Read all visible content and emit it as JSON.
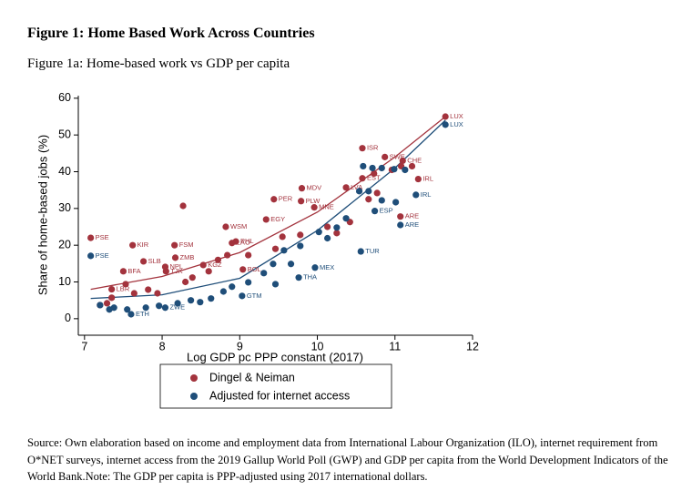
{
  "chart_data": {
    "type": "scatter",
    "title": "Figure 1: Home Based Work Across Countries",
    "subtitle": "Figure 1a: Home-based work vs GDP per capita",
    "x_label": "Log GDP pc PPP constant (2017)",
    "y_label": "Share of home-based jobs (%)",
    "xlim": [
      6.92,
      12.0
    ],
    "ylim": [
      -4.5,
      60.7
    ],
    "xticks": [
      7,
      8,
      9,
      10,
      11,
      12
    ],
    "yticks": [
      0,
      10,
      20,
      30,
      40,
      50,
      60
    ],
    "series": [
      {
        "name": "Dingel & Neiman",
        "color": "#a3333d",
        "x": [
          7.08,
          11.65,
          10.58,
          10.87,
          11.1,
          8.27,
          7.62,
          8.16,
          8.17,
          7.76,
          7.5,
          7.35,
          8.82,
          8.95,
          8.9,
          8.04,
          8.05,
          8.53,
          9.04,
          9.44,
          9.8,
          9.79,
          9.96,
          9.34,
          11.07,
          11.3,
          10.37,
          10.58,
          10.73,
          10.96,
          11.08,
          11.22,
          10.66,
          10.77,
          10.42,
          10.13,
          10.25,
          9.78,
          9.55,
          9.46,
          9.11,
          8.84,
          8.72,
          8.6,
          8.39,
          8.3,
          7.94,
          7.82,
          7.64,
          7.53,
          7.35,
          7.29,
          7.2
        ],
        "values": [
          22,
          55,
          46.4,
          44,
          43,
          30.7,
          20,
          20,
          16.6,
          15.6,
          12.9,
          8,
          25,
          21,
          20.6,
          14.1,
          12.9,
          14.6,
          13.4,
          32.5,
          35.5,
          32,
          30.3,
          27,
          27.8,
          38,
          35.7,
          38.2,
          39.5,
          40.5,
          41.5,
          41.5,
          32.5,
          34.2,
          26.3,
          25,
          23.3,
          22.8,
          22.3,
          19,
          17.3,
          17.3,
          16,
          12.9,
          11.2,
          10,
          6.9,
          7.9,
          6.9,
          9.4,
          5.7,
          4.2,
          3.7
        ],
        "labels": [
          "PSE",
          "LUX",
          "ISR",
          "SWE",
          "CHE",
          null,
          "KIR",
          "FSM",
          "ZMB",
          "SLB",
          "BFA",
          "LBR",
          "WSM",
          "PHL",
          "LAO",
          "NPL",
          "TJK",
          "KGZ",
          "BOL",
          "PER",
          "MDV",
          "PLW",
          "MNE",
          "EGY",
          "ARE",
          "IRL",
          "LVA",
          "EST",
          null,
          null,
          null,
          null,
          null,
          null,
          null,
          null,
          null,
          null,
          null,
          null,
          null,
          null,
          null,
          null,
          null,
          null,
          null,
          null,
          null,
          null,
          null,
          null,
          null
        ]
      },
      {
        "name": "Adjusted for internet access",
        "color": "#1f4e79",
        "x": [
          11.65,
          11.27,
          11.07,
          7.08,
          10.56,
          9.97,
          9.76,
          9.03,
          8.04,
          7.6,
          10.74,
          10.59,
          10.71,
          10.83,
          10.99,
          11.13,
          10.54,
          10.66,
          10.83,
          11.01,
          10.37,
          10.25,
          10.02,
          10.13,
          9.78,
          9.57,
          9.43,
          9.31,
          9.66,
          9.46,
          9.11,
          8.9,
          8.79,
          8.63,
          8.49,
          8.37,
          8.2,
          7.96,
          7.79,
          7.55,
          7.38,
          7.32,
          7.2
        ],
        "values": [
          52.8,
          33.7,
          25.5,
          17.1,
          18.3,
          13.9,
          11.2,
          6.2,
          3,
          1.2,
          29.3,
          41.5,
          41,
          41,
          40.7,
          40.5,
          34.7,
          34.7,
          32.2,
          31.7,
          27.3,
          24.8,
          23.6,
          21.9,
          19.8,
          18.6,
          14.9,
          12.4,
          14.9,
          9.4,
          9.9,
          8.7,
          7.4,
          5.5,
          4.5,
          5,
          4.2,
          3.5,
          3,
          2.5,
          3,
          2.5,
          3.7
        ],
        "labels": [
          "LUX",
          "IRL",
          "ARE",
          "PSE",
          "TUR",
          "MEX",
          "THA",
          "GTM",
          "ZWE",
          "ETH",
          "ESP",
          null,
          null,
          null,
          null,
          null,
          null,
          null,
          null,
          null,
          null,
          null,
          null,
          null,
          null,
          null,
          null,
          null,
          null,
          null,
          null,
          null,
          null,
          null,
          null,
          null,
          null,
          null,
          null,
          null,
          null,
          null,
          null
        ]
      }
    ],
    "fits": [
      {
        "color": "#a3333d",
        "x": [
          7.08,
          8,
          9,
          10,
          11,
          11.65
        ],
        "values": [
          8,
          11.5,
          18,
          29,
          44,
          55
        ]
      },
      {
        "color": "#1f4e79",
        "x": [
          7.08,
          8,
          9,
          10,
          11,
          11.65
        ],
        "values": [
          5.5,
          6.5,
          11,
          24,
          41,
          54
        ]
      }
    ],
    "source": "Source: Own elaboration based on income and employment data from International Labour Organization (ILO), internet requirement from O*NET surveys, internet access from the 2019 Gallup World Poll (GWP) and GDP per capita from the World Development Indicators of the World Bank.Note: The GDP per capita is PPP-adjusted using 2017 international dollars."
  }
}
